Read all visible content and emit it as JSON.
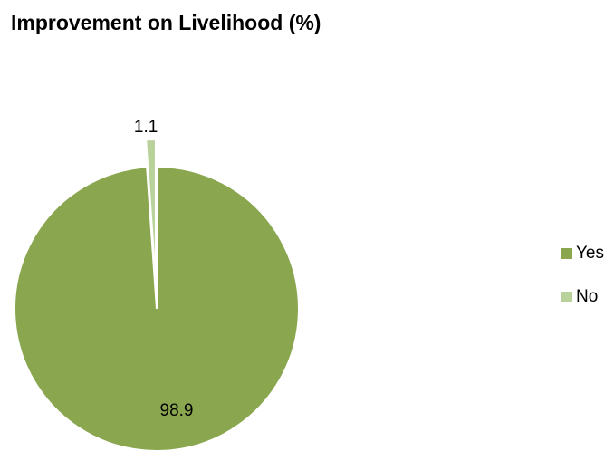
{
  "chart_data": {
    "type": "pie",
    "title": "Improvement on Livelihood (%)",
    "categories": [
      "Yes",
      "No"
    ],
    "values": [
      98.9,
      1.1
    ],
    "data_labels": [
      "98.9",
      "1.1"
    ],
    "colors": [
      "#8aa64f",
      "#b9d29b"
    ],
    "exploded": [
      "No"
    ],
    "legend_position": "right"
  }
}
